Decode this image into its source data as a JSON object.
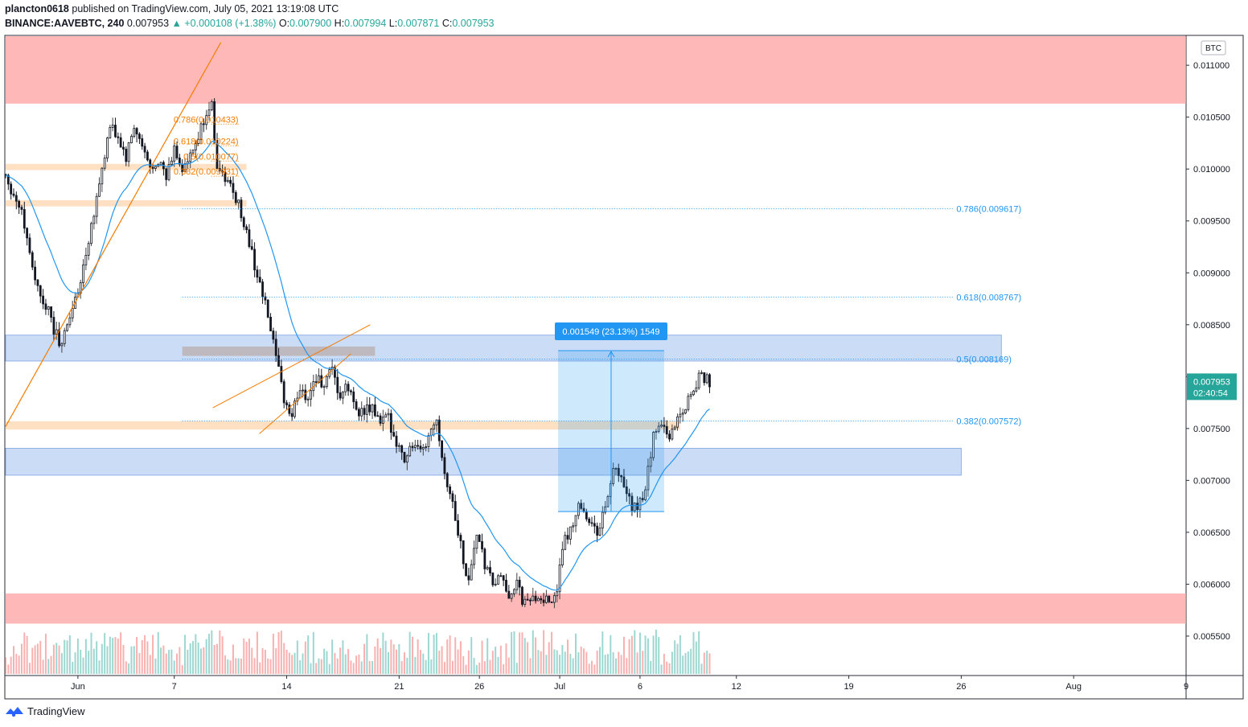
{
  "header": {
    "user": "plancton0618",
    "published": "published on TradingView.com, July 05, 2021 13:19:08 UTC",
    "symbol": "BINANCE:AAVEBTC, 240",
    "last": "0.007953",
    "arrow": "▲",
    "change": "+0.000108 (+1.38%)",
    "o_label": "O:",
    "o_val": "0.007900",
    "h_label": "H:",
    "h_val": "0.007994",
    "l_label": "L:",
    "l_val": "0.007871",
    "c_label": "C:",
    "c_val": "0.007953"
  },
  "footer": {
    "brand": "TradingView"
  },
  "colors": {
    "up": "#26a69a",
    "down": "#ef5350",
    "ema": "#2196f3",
    "fib_orange": "#f57c00",
    "fib_blue": "#2196f3",
    "red_zone": "#ff9a9a",
    "blue_zone": "#a9c4f0",
    "orange_zone": "#ffd3a8"
  },
  "chart_data": {
    "type": "candlestick",
    "currency_label": "BTC",
    "timeframe": "240",
    "ylim": [
      0.00512,
      0.01128
    ],
    "y_ticks": [
      "0.011000",
      "0.010500",
      "0.010000",
      "0.009500",
      "0.009000",
      "0.008500",
      "0.008000",
      "0.007500",
      "0.007000",
      "0.006500",
      "0.006000",
      "0.005500"
    ],
    "x_ticks": [
      "Jun",
      "7",
      "14",
      "21",
      "26",
      "Jul",
      "6",
      "12",
      "19",
      "26",
      "Aug",
      "9"
    ],
    "x_tick_days": [
      1,
      7,
      14,
      21,
      26,
      31,
      36,
      42,
      49,
      56,
      63,
      70
    ],
    "x_start_day": -3.5,
    "x_end_day": 70,
    "last_price_label": "0.007953",
    "countdown_label": "02:40:54",
    "measure_label": "0.001549 (23.13%) 1549",
    "fib_left": [
      {
        "label": "0.786(0.010433)",
        "price": 0.010433
      },
      {
        "label": "0.618(0.010224)",
        "price": 0.010224
      },
      {
        "label": "0.5(0.010077)",
        "price": 0.010077
      },
      {
        "label": "0.382(0.009931)",
        "price": 0.009931
      }
    ],
    "fib_right": [
      {
        "label": "0.786(0.009617)",
        "price": 0.009617
      },
      {
        "label": "0.618(0.008767)",
        "price": 0.008767
      },
      {
        "label": "0.5(0.008169)",
        "price": 0.008169
      },
      {
        "label": "0.382(0.007572)",
        "price": 0.007572
      }
    ],
    "zones": [
      {
        "kind": "red",
        "top": 0.01128,
        "bottom": 0.01063,
        "d0": -3.5,
        "d1": 70
      },
      {
        "kind": "red",
        "top": 0.00591,
        "bottom": 0.00562,
        "d0": -3.5,
        "d1": 70
      },
      {
        "kind": "blue",
        "top": 0.0084,
        "bottom": 0.00815,
        "d0": -3.5,
        "d1": 58.5
      },
      {
        "kind": "blue",
        "top": 0.00731,
        "bottom": 0.00705,
        "d0": -3.5,
        "d1": 56
      },
      {
        "kind": "orange",
        "top": 0.01005,
        "bottom": 0.00999,
        "d0": -3.5,
        "d1": 11.5
      },
      {
        "kind": "orange",
        "top": 0.0097,
        "bottom": 0.00964,
        "d0": -3.5,
        "d1": 11.5
      },
      {
        "kind": "orange",
        "top": 0.00757,
        "bottom": 0.00749,
        "d0": -3.5,
        "d1": 38.5
      },
      {
        "kind": "grey",
        "top": 0.00829,
        "bottom": 0.0082,
        "d0": 7.5,
        "d1": 19.5
      }
    ],
    "close_path": [
      [
        -3.5,
        0.00995
      ],
      [
        -3.0,
        0.00975
      ],
      [
        -2.5,
        0.0096
      ],
      [
        -2.0,
        0.0092
      ],
      [
        -1.5,
        0.00885
      ],
      [
        -1.0,
        0.0087
      ],
      [
        -0.5,
        0.00845
      ],
      [
        0.0,
        0.0083
      ],
      [
        0.5,
        0.0086
      ],
      [
        1.0,
        0.0088
      ],
      [
        1.5,
        0.0092
      ],
      [
        2.0,
        0.0096
      ],
      [
        2.5,
        0.01
      ],
      [
        3.0,
        0.0104
      ],
      [
        3.5,
        0.0103
      ],
      [
        4.0,
        0.0101
      ],
      [
        4.5,
        0.0104
      ],
      [
        5.0,
        0.0102
      ],
      [
        5.5,
        0.01
      ],
      [
        6.0,
        0.0101
      ],
      [
        6.5,
        0.0099
      ],
      [
        7.0,
        0.0102
      ],
      [
        7.5,
        0.01
      ],
      [
        8.0,
        0.0101
      ],
      [
        8.5,
        0.0103
      ],
      [
        9.0,
        0.01055
      ],
      [
        9.3,
        0.01065
      ],
      [
        9.7,
        0.01
      ],
      [
        10.2,
        0.0099
      ],
      [
        10.8,
        0.00975
      ],
      [
        11.3,
        0.0095
      ],
      [
        11.8,
        0.0092
      ],
      [
        12.3,
        0.0089
      ],
      [
        12.8,
        0.0086
      ],
      [
        13.3,
        0.0082
      ],
      [
        13.8,
        0.0078
      ],
      [
        14.3,
        0.0076
      ],
      [
        14.8,
        0.0079
      ],
      [
        15.3,
        0.0078
      ],
      [
        15.8,
        0.008
      ],
      [
        16.3,
        0.0079
      ],
      [
        16.8,
        0.00805
      ],
      [
        17.3,
        0.0078
      ],
      [
        17.8,
        0.0079
      ],
      [
        18.3,
        0.0077
      ],
      [
        18.8,
        0.00765
      ],
      [
        19.3,
        0.0077
      ],
      [
        19.8,
        0.00755
      ],
      [
        20.3,
        0.0076
      ],
      [
        20.8,
        0.0074
      ],
      [
        21.3,
        0.0072
      ],
      [
        21.8,
        0.00735
      ],
      [
        22.3,
        0.00725
      ],
      [
        22.8,
        0.0074
      ],
      [
        23.3,
        0.00765
      ],
      [
        23.8,
        0.0071
      ],
      [
        24.3,
        0.0068
      ],
      [
        24.8,
        0.0064
      ],
      [
        25.3,
        0.006
      ],
      [
        25.8,
        0.0065
      ],
      [
        26.3,
        0.0062
      ],
      [
        26.8,
        0.006
      ],
      [
        27.3,
        0.00605
      ],
      [
        27.8,
        0.0059
      ],
      [
        28.3,
        0.006
      ],
      [
        28.8,
        0.0058
      ],
      [
        29.3,
        0.00585
      ],
      [
        29.8,
        0.0059
      ],
      [
        30.3,
        0.0058
      ],
      [
        30.8,
        0.00595
      ],
      [
        31.3,
        0.0064
      ],
      [
        31.8,
        0.0066
      ],
      [
        32.3,
        0.0068
      ],
      [
        32.8,
        0.0066
      ],
      [
        33.3,
        0.0065
      ],
      [
        33.8,
        0.0067
      ],
      [
        34.3,
        0.0071
      ],
      [
        34.8,
        0.007
      ],
      [
        35.3,
        0.0068
      ],
      [
        35.8,
        0.0067
      ],
      [
        36.3,
        0.0069
      ],
      [
        36.8,
        0.0074
      ],
      [
        37.3,
        0.0076
      ],
      [
        37.8,
        0.0074
      ],
      [
        38.3,
        0.0076
      ],
      [
        38.8,
        0.0077
      ],
      [
        39.3,
        0.0079
      ],
      [
        39.8,
        0.008
      ],
      [
        40.3,
        0.00795
      ]
    ]
  }
}
